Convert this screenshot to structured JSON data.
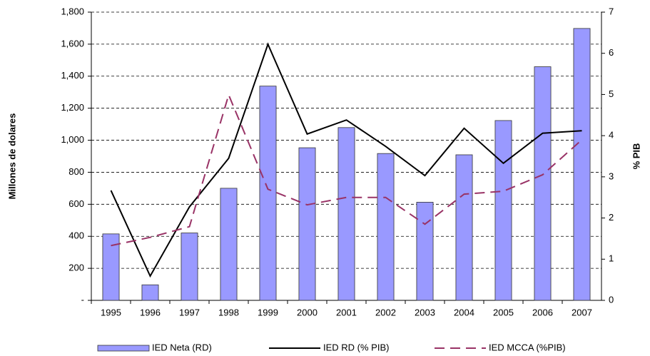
{
  "chart_data": {
    "type": "bar-line",
    "ylabel": "Millones de dolares",
    "y2label": "% PIB",
    "categories": [
      "1995",
      "1996",
      "1997",
      "1998",
      "1999",
      "2000",
      "2001",
      "2002",
      "2003",
      "2004",
      "2005",
      "2006",
      "2007"
    ],
    "series": [
      {
        "name": "IED Neta (RD)",
        "type": "bar",
        "color": "#9999ff",
        "values": [
          415,
          97,
          421,
          700,
          1338,
          953,
          1079,
          917,
          613,
          909,
          1123,
          1459,
          1698
        ]
      },
      {
        "name": "IED RD (% PIB)",
        "type": "line",
        "axis": "y2",
        "color": "#000000",
        "dash": false,
        "values": [
          2.67,
          0.59,
          2.27,
          3.45,
          6.22,
          4.04,
          4.38,
          3.74,
          3.03,
          4.18,
          3.33,
          4.06,
          4.12
        ]
      },
      {
        "name": "IED MCCA (%PIB)",
        "type": "line",
        "axis": "y2",
        "color": "#993366",
        "dash": true,
        "values": [
          1.33,
          1.53,
          1.79,
          4.99,
          2.7,
          2.32,
          2.5,
          2.5,
          1.85,
          2.58,
          2.65,
          3.05,
          3.9
        ]
      }
    ],
    "ylim": [
      0,
      1800
    ],
    "yticks": [
      {
        "value": 0,
        "label": "-"
      },
      200,
      400,
      600,
      800,
      {
        "value": 1000,
        "label": "1,000"
      },
      {
        "value": 1200,
        "label": "1,200"
      },
      {
        "value": 1400,
        "label": "1,400"
      },
      {
        "value": 1600,
        "label": "1,600"
      },
      {
        "value": 1800,
        "label": "1,800"
      }
    ],
    "y2lim": [
      0,
      7
    ],
    "y2ticks": [
      0,
      1,
      2,
      3,
      4,
      5,
      6,
      7
    ],
    "grid": true,
    "legend": "bottom"
  }
}
